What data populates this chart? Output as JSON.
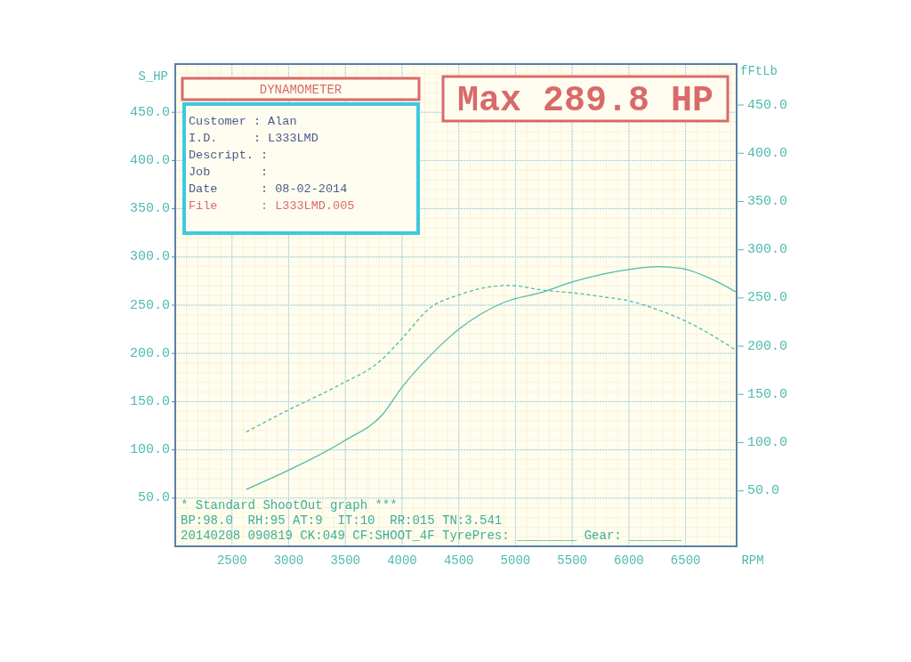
{
  "chart_data": {
    "type": "line",
    "ylabel": "S_HP",
    "y2label": "fFtLb",
    "xlabel": "RPM",
    "xlim": [
      2000,
      6950
    ],
    "xticks": [
      2500,
      3000,
      3500,
      4000,
      4500,
      5000,
      5500,
      6000,
      6500
    ],
    "ylim": [
      0,
      500
    ],
    "yticks": [
      {
        "value": 50,
        "label": "50.0"
      },
      {
        "value": 100,
        "label": "100.0"
      },
      {
        "value": 150,
        "label": "150.0"
      },
      {
        "value": 200,
        "label": "200.0"
      },
      {
        "value": 250,
        "label": "250.0"
      },
      {
        "value": 300,
        "label": "300.0"
      },
      {
        "value": 350,
        "label": "350.0"
      },
      {
        "value": 400,
        "label": "400.0"
      },
      {
        "value": 450,
        "label": "450.0"
      }
    ],
    "y2lim": [
      -7.5,
      492.5
    ],
    "y2ticks": [
      {
        "value": 50,
        "label": "50.0"
      },
      {
        "value": 100,
        "label": "100.0"
      },
      {
        "value": 150,
        "label": "150.0"
      },
      {
        "value": 200,
        "label": "200.0"
      },
      {
        "value": 250,
        "label": "250.0"
      },
      {
        "value": 300,
        "label": "300.0"
      },
      {
        "value": 350,
        "label": "350.0"
      },
      {
        "value": 400,
        "label": "400.0"
      },
      {
        "value": 450,
        "label": "450.0"
      }
    ],
    "grid": true,
    "marker": "none",
    "series": [
      {
        "color": "#4fbab0",
        "line_style": "solid",
        "x": [
          2625,
          3000,
          3500,
          3830,
          4000,
          4250,
          4500,
          4900,
          5250,
          5500,
          6000,
          6250,
          6470,
          6750,
          6940
        ],
        "values": [
          59,
          79,
          110,
          137,
          165,
          198,
          225,
          253,
          264,
          274,
          287,
          290,
          288,
          276,
          264
        ]
      },
      {
        "color": "#4fbab0",
        "line_style": "dashed",
        "axis": "y2",
        "x": [
          2625,
          3000,
          3450,
          3810,
          4000,
          4250,
          4500,
          4800,
          4950,
          5250,
          5530,
          5780,
          6000,
          6250,
          6500,
          6780,
          6940
        ],
        "values": [
          111,
          134,
          160,
          185,
          208,
          240,
          253,
          262,
          263,
          258,
          255,
          251,
          247,
          238,
          226,
          208,
          196
        ]
      }
    ],
    "annotations": [
      "DYNAMOMETER",
      "Max 289.8 HP",
      "Customer : Alan",
      "I.D.     : L333LMD",
      "Descript. :",
      "Job       :",
      "Date      : 08-02-2014",
      "File      : L333LMD.005",
      "* Standard ShootOut graph ***",
      "BP:98.0  RH:95 AT:9  IT:10  RR:015 TN:3.541",
      "20140208 090819 CK:049 CF:SHOOT_4F TyrePres: ________ Gear: _______"
    ]
  }
}
